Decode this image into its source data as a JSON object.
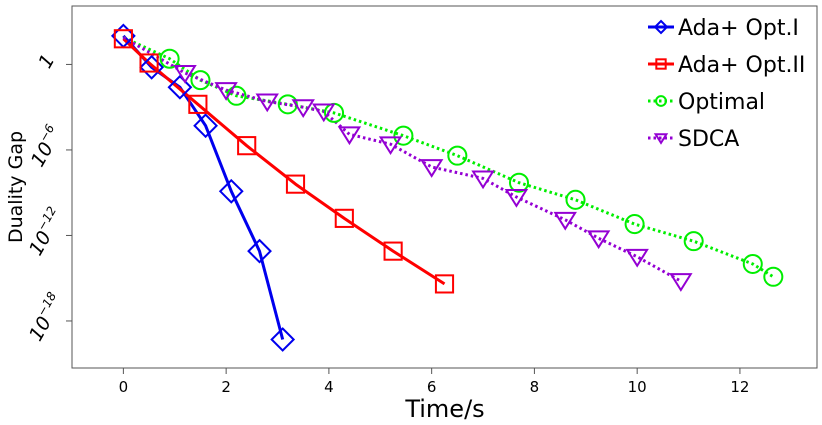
{
  "chart_data": {
    "type": "line",
    "title": "",
    "xlabel": "Time/s",
    "ylabel": "Duality Gap",
    "xlim": [
      -1,
      13.5
    ],
    "ylim_log10": [
      -21.3,
      4.1
    ],
    "x_ticks": [
      0,
      2,
      4,
      6,
      8,
      10,
      12
    ],
    "x_tick_labels": [
      "0",
      "2",
      "4",
      "6",
      "8",
      "10",
      "12"
    ],
    "y_ticks_log10": [
      0,
      -6,
      -12,
      -18
    ],
    "y_tick_labels": [
      {
        "base": "1",
        "exp": ""
      },
      {
        "base": "10",
        "exp": "−6"
      },
      {
        "base": "10",
        "exp": "−12"
      },
      {
        "base": "10",
        "exp": "−18"
      }
    ],
    "legend_position": "top-right",
    "series": [
      {
        "name": "Ada+ Opt.I",
        "color": "#0000ee",
        "line": "solid",
        "marker": "diamond",
        "x": [
          0,
          0.55,
          1.1,
          1.6,
          2.1,
          2.65,
          3.1
        ],
        "log10_y": [
          2.0,
          -0.2,
          -1.6,
          -4.3,
          -8.9,
          -13.1,
          -19.3
        ]
      },
      {
        "name": "Ada+ Opt.II",
        "color": "#ff0000",
        "line": "solid",
        "marker": "square",
        "x": [
          0,
          0.5,
          1.45,
          2.4,
          3.35,
          4.3,
          5.25,
          6.25
        ],
        "log10_y": [
          1.8,
          0.1,
          -2.8,
          -5.7,
          -8.4,
          -10.8,
          -13.1,
          -15.4
        ]
      },
      {
        "name": "Optimal",
        "color": "#00ee00",
        "line": "dotted",
        "marker": "circle",
        "x": [
          0,
          0.9,
          1.5,
          2.2,
          3.2,
          4.1,
          5.45,
          6.5,
          7.7,
          8.8,
          9.95,
          11.1,
          12.25,
          12.65
        ],
        "log10_y": [
          1.9,
          0.4,
          -1.1,
          -2.2,
          -2.8,
          -3.4,
          -5.0,
          -6.4,
          -8.3,
          -9.5,
          -11.2,
          -12.4,
          -14.0,
          -14.9
        ]
      },
      {
        "name": "SDCA",
        "color": "#9400d3",
        "line": "dotted",
        "marker": "triangle-down",
        "x": [
          0,
          1.2,
          2.0,
          2.8,
          3.5,
          3.9,
          4.4,
          5.2,
          6.0,
          7.0,
          7.65,
          8.6,
          9.25,
          10.0,
          10.85
        ],
        "log10_y": [
          1.9,
          -0.6,
          -1.8,
          -2.6,
          -3.0,
          -3.3,
          -4.9,
          -5.6,
          -7.2,
          -8.0,
          -9.3,
          -10.9,
          -12.2,
          -13.5,
          -15.2
        ]
      }
    ]
  }
}
